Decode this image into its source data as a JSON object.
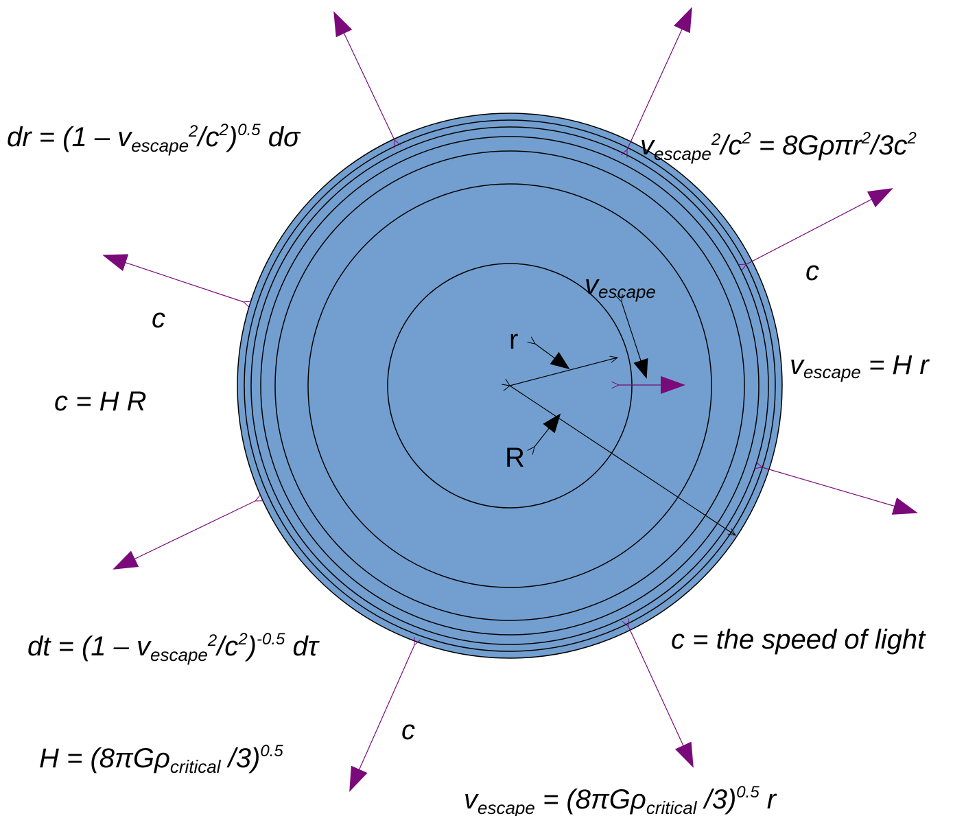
{
  "colors": {
    "fill": "#729fcf",
    "stroke": "#000000",
    "arrow": "#7a0a7a"
  },
  "labels": {
    "dr": {
      "a": "dr = (1 – v",
      "sub": "escape",
      "sup1": "2",
      "b": "/c",
      "sup2": "2",
      "c": ")",
      "sup3": "0.5",
      "d": " dσ"
    },
    "vesc_sq": {
      "a": "v",
      "sub": "escape",
      "sup1": "2",
      "b": "/c",
      "sup2": "2",
      "c": " = 8Gρπr",
      "sup3": "2",
      "d": "/3c",
      "sup4": "2"
    },
    "c_upper_right": "c",
    "c_left": "c",
    "v_escape_inner": {
      "a": "v",
      "sub": "escape"
    },
    "r": "r",
    "R": "R",
    "vesc_hr": {
      "a": "v",
      "sub": "escape",
      "b": " = H r"
    },
    "c_hr": "c = H R",
    "c_def": "c = the speed of light",
    "dt": {
      "a": "dt = (1 – v",
      "sub": "escape",
      "sup1": "2",
      "b": "/c",
      "sup2": "2",
      "c": ")",
      "sup3": "-0.5",
      "d": " dτ"
    },
    "c_bottom": "c",
    "H": {
      "a": "H  = (8πGρ",
      "sub": "critical",
      "b": " /3)",
      "sup": "0.5"
    },
    "vesc_crit": {
      "a": "v",
      "sub": "escape",
      "b": " = (8πGρ",
      "sub2": "critical",
      "c": " /3)",
      "sup": "0.5",
      "d": " r"
    }
  }
}
